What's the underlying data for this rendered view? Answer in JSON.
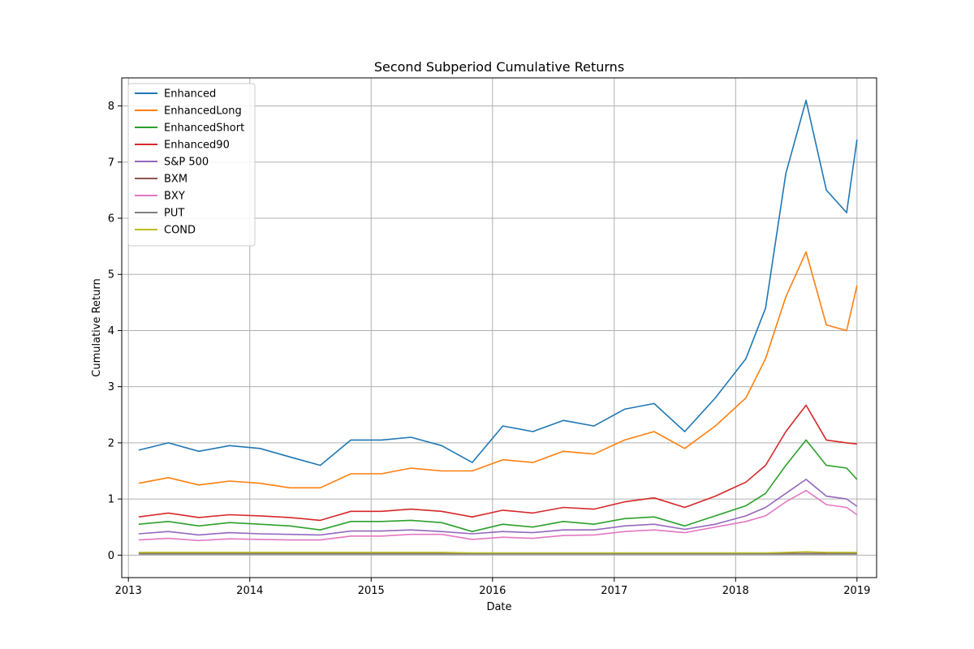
{
  "chart_data": {
    "type": "line",
    "title": "Second Subperiod Cumulative Returns",
    "xlabel": "Date",
    "ylabel": "Cumulative Return",
    "xlim": [
      "2012-12-12",
      "2019-03-01"
    ],
    "ylim": [
      -0.4,
      8.5
    ],
    "x_ticks": [
      "2013-01-01",
      "2014-01-01",
      "2015-01-01",
      "2016-01-01",
      "2017-01-01",
      "2018-01-01",
      "2019-01-01"
    ],
    "x_tick_labels": [
      "2013",
      "2014",
      "2015",
      "2016",
      "2017",
      "2018",
      "2019"
    ],
    "y_ticks": [
      0,
      1,
      2,
      3,
      4,
      5,
      6,
      7,
      8
    ],
    "y_tick_labels": [
      "0",
      "1",
      "2",
      "3",
      "4",
      "5",
      "6",
      "7",
      "8"
    ],
    "grid": true,
    "legend_position": "upper-left",
    "x": [
      "2013-02-01",
      "2013-05-01",
      "2013-08-01",
      "2013-11-01",
      "2014-02-01",
      "2014-05-01",
      "2014-08-01",
      "2014-11-01",
      "2015-02-01",
      "2015-05-01",
      "2015-08-01",
      "2015-11-01",
      "2016-02-01",
      "2016-05-01",
      "2016-08-01",
      "2016-11-01",
      "2017-02-01",
      "2017-05-01",
      "2017-08-01",
      "2017-11-01",
      "2018-02-01",
      "2018-04-01",
      "2018-06-01",
      "2018-08-01",
      "2018-10-01",
      "2018-12-01",
      "2019-01-01"
    ],
    "series": [
      {
        "name": "Enhanced",
        "color": "#1f77b4",
        "values": [
          1.87,
          2.0,
          1.85,
          1.95,
          1.9,
          1.75,
          1.6,
          2.05,
          2.05,
          2.1,
          1.95,
          1.65,
          2.3,
          2.2,
          2.4,
          2.3,
          2.6,
          2.7,
          2.2,
          2.8,
          3.5,
          4.4,
          6.8,
          8.1,
          6.5,
          6.1,
          7.4
        ]
      },
      {
        "name": "EnhancedLong",
        "color": "#ff7f0e",
        "values": [
          1.28,
          1.38,
          1.25,
          1.32,
          1.28,
          1.2,
          1.2,
          1.45,
          1.45,
          1.55,
          1.5,
          1.5,
          1.7,
          1.65,
          1.85,
          1.8,
          2.05,
          2.2,
          1.9,
          2.3,
          2.8,
          3.5,
          4.6,
          5.4,
          4.1,
          4.0,
          4.8
        ]
      },
      {
        "name": "EnhancedShort",
        "color": "#2ca02c",
        "values": [
          0.55,
          0.6,
          0.52,
          0.58,
          0.55,
          0.52,
          0.45,
          0.6,
          0.6,
          0.62,
          0.58,
          0.42,
          0.55,
          0.5,
          0.6,
          0.55,
          0.65,
          0.68,
          0.52,
          0.7,
          0.88,
          1.1,
          1.6,
          2.05,
          1.6,
          1.55,
          1.35
        ]
      },
      {
        "name": "Enhanced90",
        "color": "#d62728",
        "values": [
          0.68,
          0.75,
          0.67,
          0.72,
          0.7,
          0.67,
          0.62,
          0.78,
          0.78,
          0.82,
          0.78,
          0.68,
          0.8,
          0.75,
          0.85,
          0.82,
          0.95,
          1.02,
          0.85,
          1.05,
          1.3,
          1.6,
          2.2,
          2.67,
          2.05,
          2.0,
          1.98
        ]
      },
      {
        "name": "S&P 500",
        "color": "#9467bd",
        "values": [
          0.38,
          0.42,
          0.36,
          0.4,
          0.38,
          0.37,
          0.36,
          0.43,
          0.43,
          0.45,
          0.42,
          0.38,
          0.42,
          0.4,
          0.45,
          0.45,
          0.52,
          0.55,
          0.46,
          0.55,
          0.7,
          0.85,
          1.1,
          1.35,
          1.05,
          1.0,
          0.87
        ]
      },
      {
        "name": "BXM",
        "color": "#8c564b",
        "values": [
          0.03,
          0.03,
          0.03,
          0.03,
          0.03,
          0.03,
          0.03,
          0.03,
          0.03,
          0.03,
          0.03,
          0.03,
          0.03,
          0.03,
          0.03,
          0.03,
          0.03,
          0.03,
          0.03,
          0.03,
          0.03,
          0.03,
          0.03,
          0.03,
          0.03,
          0.03,
          0.03
        ]
      },
      {
        "name": "BXY",
        "color": "#e377c2",
        "values": [
          0.27,
          0.3,
          0.26,
          0.29,
          0.28,
          0.27,
          0.27,
          0.34,
          0.34,
          0.37,
          0.37,
          0.28,
          0.32,
          0.3,
          0.35,
          0.36,
          0.42,
          0.45,
          0.4,
          0.5,
          0.6,
          0.7,
          0.95,
          1.15,
          0.9,
          0.85,
          0.72
        ]
      },
      {
        "name": "PUT",
        "color": "#7f7f7f",
        "values": [
          0.02,
          0.02,
          0.02,
          0.02,
          0.02,
          0.02,
          0.02,
          0.02,
          0.02,
          0.02,
          0.02,
          0.02,
          0.02,
          0.02,
          0.02,
          0.02,
          0.02,
          0.02,
          0.02,
          0.02,
          0.02,
          0.02,
          0.02,
          0.02,
          0.02,
          0.02,
          0.02
        ]
      },
      {
        "name": "COND",
        "color": "#bcbd22",
        "values": [
          0.05,
          0.05,
          0.05,
          0.05,
          0.05,
          0.05,
          0.05,
          0.05,
          0.05,
          0.05,
          0.05,
          0.04,
          0.04,
          0.04,
          0.04,
          0.04,
          0.04,
          0.04,
          0.04,
          0.04,
          0.04,
          0.04,
          0.05,
          0.06,
          0.05,
          0.05,
          0.05
        ]
      }
    ]
  }
}
